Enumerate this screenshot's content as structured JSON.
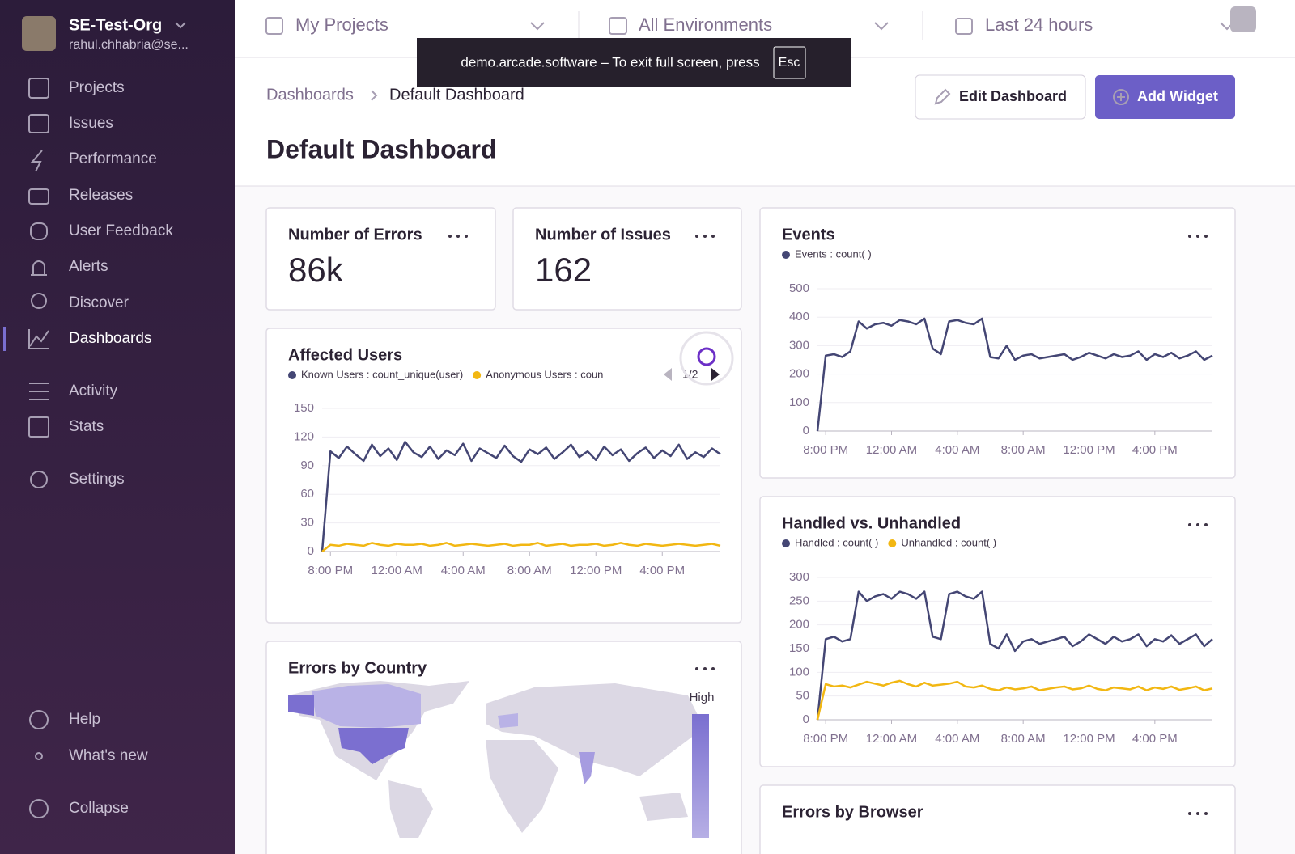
{
  "sidebar": {
    "org": "SE-Test-Org",
    "user": "rahul.chhabria@se...",
    "nav": [
      "Projects",
      "Issues",
      "Performance",
      "Releases",
      "User Feedback",
      "Alerts",
      "Discover",
      "Dashboards",
      "Activity",
      "Stats",
      "Settings"
    ],
    "footer": [
      "Help",
      "What's new",
      "Collapse"
    ]
  },
  "topbar": {
    "projects": "My Projects",
    "environments": "All Environments",
    "period": "Last 24 hours"
  },
  "toast": {
    "text": "demo.arcade.software – To exit full screen, press",
    "key": "Esc"
  },
  "breadcrumb": [
    "Dashboards",
    "Default Dashboard"
  ],
  "buttons": {
    "edit": "Edit Dashboard",
    "add": "Add Widget"
  },
  "title": "Default Dashboard",
  "widgets": {
    "errors": {
      "title": "Number of Errors",
      "value": "86k"
    },
    "issues": {
      "title": "Number of Issues",
      "value": 162
    },
    "events": {
      "title": "Events",
      "chart": {
        "type": "line",
        "series": [
          {
            "name": "Events : count( )",
            "color": "#444674",
            "values": [
              0,
              265,
              270,
              260,
              280,
              385,
              360,
              375,
              380,
              370,
              390,
              385,
              375,
              395,
              290,
              270,
              385,
              390,
              380,
              375,
              395,
              260,
              255,
              300,
              250,
              265,
              270,
              255,
              260,
              265,
              270,
              250,
              260,
              275,
              265,
              255,
              270,
              260,
              265,
              280,
              250,
              270,
              260,
              275,
              255,
              265,
              280,
              250,
              265
            ]
          }
        ],
        "xlim": [
          0,
          48
        ],
        "xticks": [
          {
            "value": 1,
            "label": "8:00 PM"
          },
          {
            "value": 9,
            "label": "12:00 AM"
          },
          {
            "value": 17,
            "label": "4:00 AM"
          },
          {
            "value": 25,
            "label": "8:00 AM"
          },
          {
            "value": 33,
            "label": "12:00 PM"
          },
          {
            "value": 41,
            "label": "4:00 PM"
          }
        ],
        "ylim": [
          0,
          500
        ],
        "yticks": [
          0,
          100,
          200,
          300,
          400,
          500
        ],
        "grid": true
      }
    },
    "affected": {
      "title": "Affected Users",
      "page": "1/2",
      "chart": {
        "type": "line",
        "series": [
          {
            "name": "Known Users : count_unique(user)",
            "color": "#444674",
            "values": [
              0,
              105,
              98,
              110,
              102,
              95,
              112,
              100,
              108,
              96,
              115,
              104,
              99,
              110,
              97,
              106,
              101,
              113,
              95,
              108,
              103,
              98,
              111,
              100,
              94,
              107,
              102,
              109,
              97,
              104,
              112,
              99,
              105,
              96,
              110,
              101,
              107,
              95,
              103,
              109,
              98,
              106,
              100,
              112,
              97,
              104,
              99,
              108,
              102
            ]
          },
          {
            "name": "Anonymous Users : coun",
            "color": "#f2b712",
            "values": [
              0,
              7,
              6,
              8,
              7,
              6,
              9,
              7,
              6,
              8,
              7,
              7,
              8,
              6,
              7,
              9,
              6,
              7,
              8,
              7,
              6,
              7,
              8,
              6,
              7,
              7,
              9,
              6,
              7,
              8,
              6,
              7,
              7,
              8,
              6,
              7,
              9,
              7,
              6,
              8,
              7,
              6,
              7,
              8,
              7,
              6,
              7,
              8,
              6
            ]
          }
        ],
        "xlim": [
          0,
          48
        ],
        "xticks": [
          {
            "value": 1,
            "label": "8:00 PM"
          },
          {
            "value": 9,
            "label": "12:00 AM"
          },
          {
            "value": 17,
            "label": "4:00 AM"
          },
          {
            "value": 25,
            "label": "8:00 AM"
          },
          {
            "value": 33,
            "label": "12:00 PM"
          },
          {
            "value": 41,
            "label": "4:00 PM"
          }
        ],
        "ylim": [
          0,
          150
        ],
        "yticks": [
          0,
          30,
          60,
          90,
          120,
          150
        ],
        "grid": true
      }
    },
    "handled": {
      "title": "Handled vs. Unhandled",
      "chart": {
        "type": "line",
        "series": [
          {
            "name": "Handled : count( )",
            "color": "#444674",
            "values": [
              0,
              170,
              175,
              165,
              170,
              270,
              250,
              260,
              265,
              255,
              270,
              265,
              255,
              270,
              175,
              170,
              265,
              270,
              260,
              255,
              270,
              160,
              150,
              180,
              145,
              165,
              170,
              160,
              165,
              170,
              175,
              155,
              165,
              180,
              170,
              160,
              175,
              165,
              170,
              180,
              155,
              170,
              165,
              178,
              160,
              170,
              180,
              155,
              170
            ]
          },
          {
            "name": "Unhandled : count( )",
            "color": "#f2b712",
            "values": [
              0,
              75,
              70,
              72,
              68,
              74,
              80,
              76,
              72,
              78,
              82,
              75,
              70,
              78,
              72,
              74,
              76,
              80,
              70,
              68,
              72,
              65,
              62,
              68,
              64,
              66,
              70,
              62,
              65,
              68,
              70,
              64,
              66,
              72,
              65,
              62,
              68,
              66,
              64,
              70,
              62,
              68,
              65,
              70,
              63,
              66,
              70,
              62,
              66
            ]
          }
        ],
        "xlim": [
          0,
          48
        ],
        "xticks": [
          {
            "value": 1,
            "label": "8:00 PM"
          },
          {
            "value": 9,
            "label": "12:00 AM"
          },
          {
            "value": 17,
            "label": "4:00 AM"
          },
          {
            "value": 25,
            "label": "8:00 AM"
          },
          {
            "value": 33,
            "label": "12:00 PM"
          },
          {
            "value": 41,
            "label": "4:00 PM"
          }
        ],
        "ylim": [
          0,
          300
        ],
        "yticks": [
          0,
          50,
          100,
          150,
          200,
          250,
          300
        ],
        "grid": true
      }
    },
    "country": {
      "title": "Errors by Country",
      "legend": "High"
    },
    "browser": {
      "title": "Errors by Browser"
    }
  }
}
